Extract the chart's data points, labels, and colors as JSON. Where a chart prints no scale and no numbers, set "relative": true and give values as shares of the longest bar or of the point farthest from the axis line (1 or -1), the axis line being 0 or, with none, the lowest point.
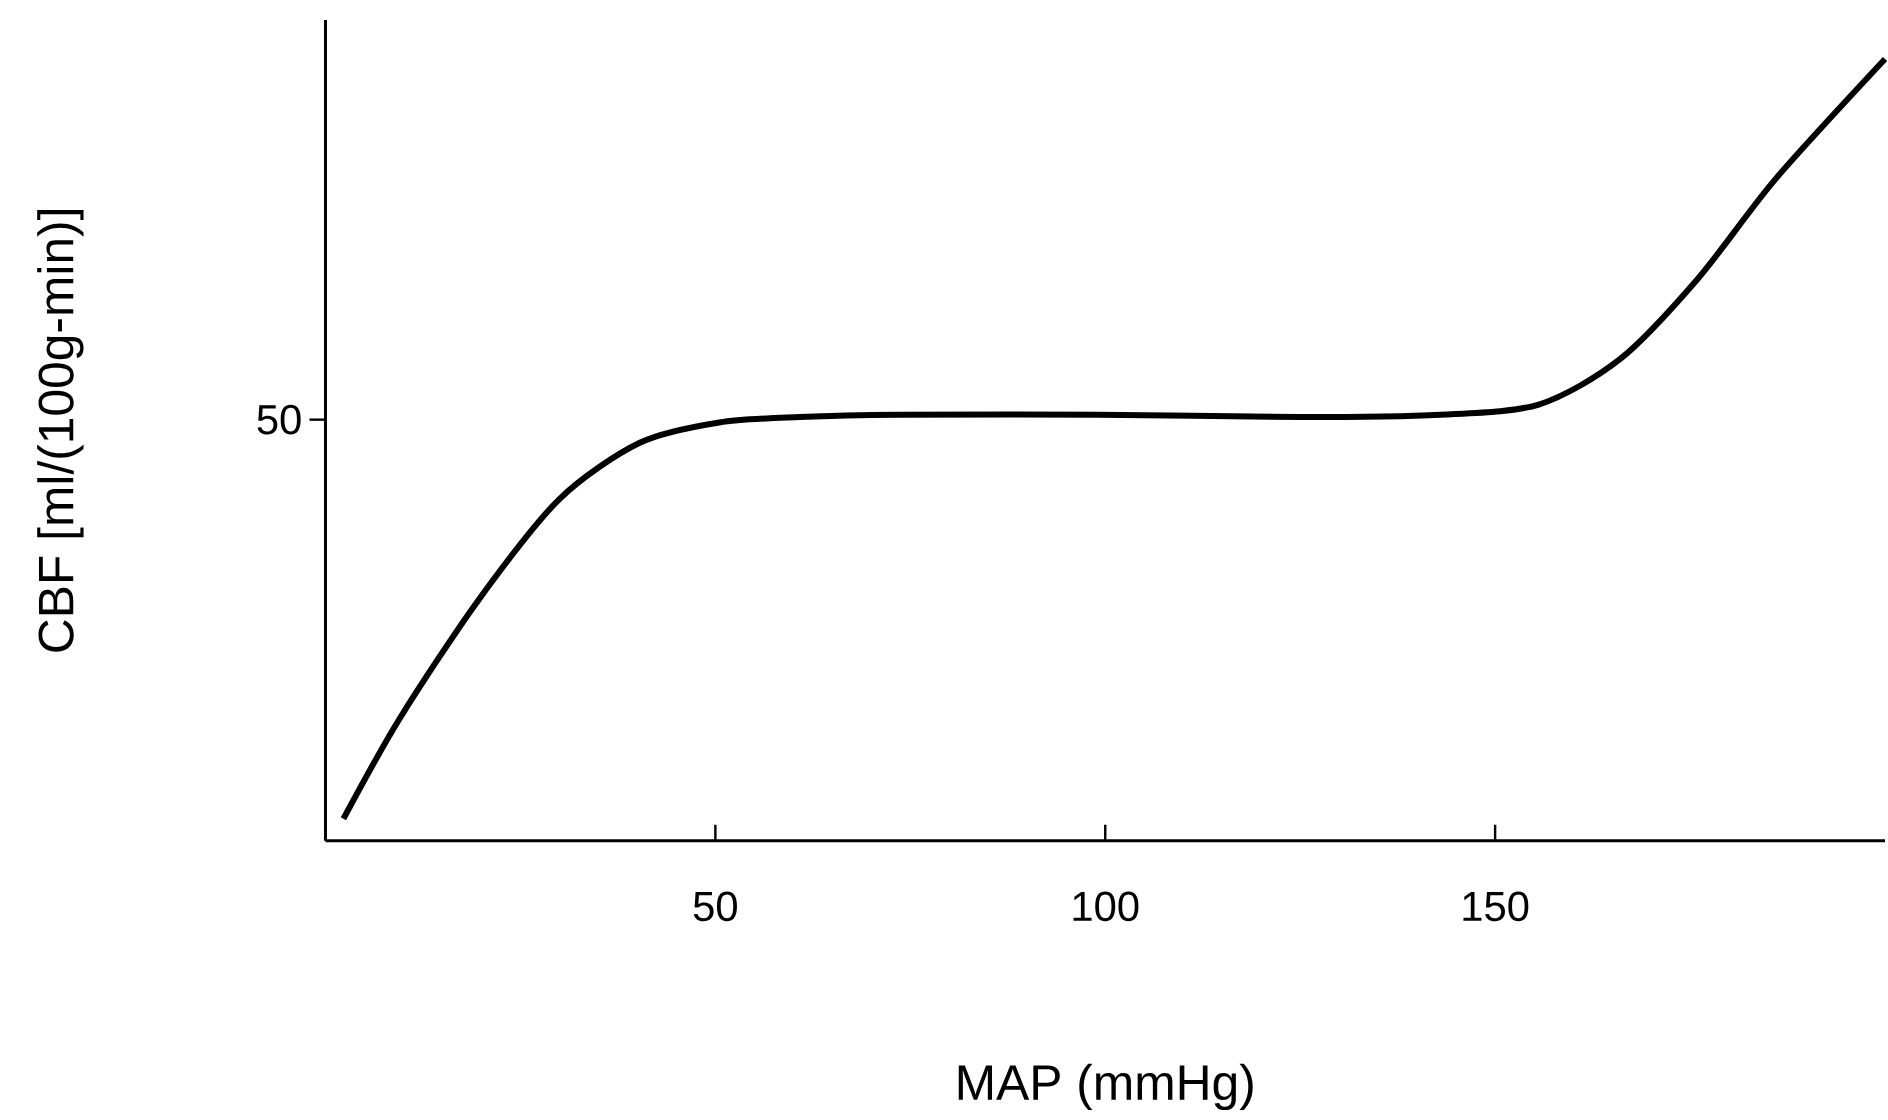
{
  "chart_data": {
    "type": "line",
    "relative": true,
    "xlabel": "MAP (mmHg)",
    "ylabel": "CBF  [ml/(100g-min)]",
    "xlim": [
      0,
      200
    ],
    "xticks": [
      50,
      100,
      150
    ],
    "annotations": [
      "50"
    ],
    "series": [
      {
        "color": "#000000",
        "x": [
          2.3,
          9.5,
          19.7,
          30,
          40.3,
          50.5,
          60.8,
          73.6,
          99,
          125,
          143,
          155.6,
          166,
          176,
          186,
          200
        ],
        "values": [
          0.028,
          0.156,
          0.309,
          0.437,
          0.509,
          0.535,
          0.542,
          0.545,
          0.545,
          0.542,
          0.545,
          0.558,
          0.616,
          0.719,
          0.847,
          1.0
        ]
      }
    ],
    "grid": false,
    "marker": "none",
    "line_style": "solid"
  }
}
